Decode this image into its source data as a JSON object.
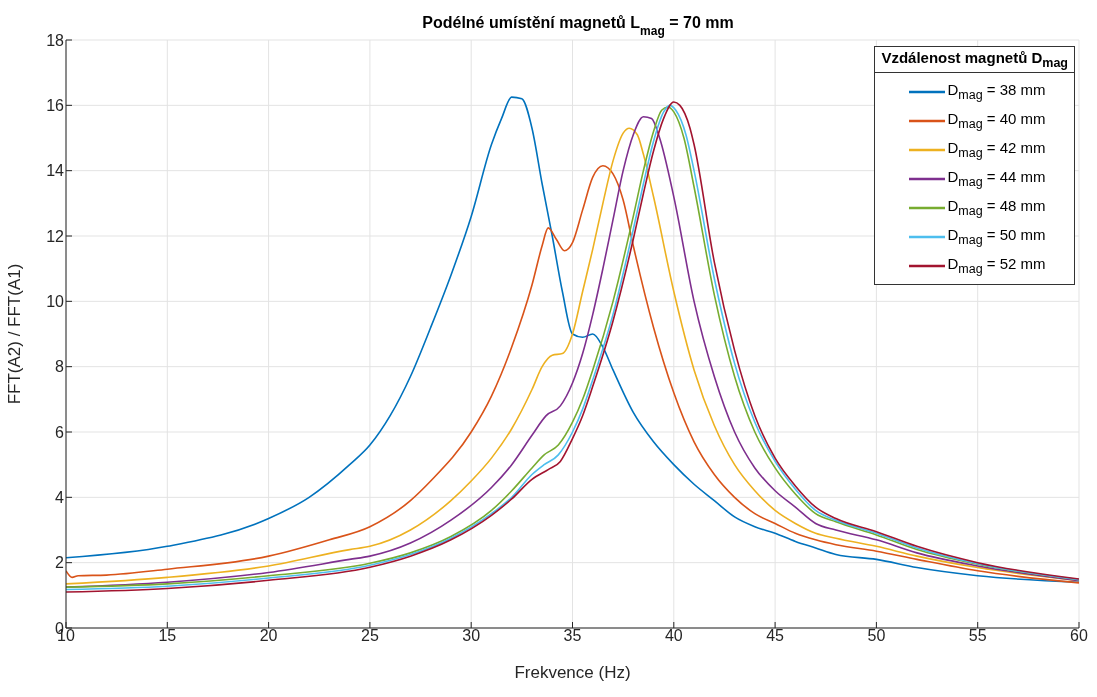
{
  "chart_data": {
    "type": "line",
    "title": "Podélné umístění magnetů L$_{mag}$ = 70 mm",
    "xlabel": "Frekvence (Hz)",
    "ylabel": "FFT(A2) / FFT(A1)",
    "legend_title": "Vzdálenost magnetů D$_{mag}$",
    "legend": "top right",
    "grid": true,
    "marker": "none",
    "line_style": "solid",
    "xlim": [
      10,
      60
    ],
    "xticks": [
      10,
      15,
      20,
      25,
      30,
      35,
      40,
      45,
      50,
      55,
      60
    ],
    "ylim": [
      0,
      18
    ],
    "yticks": [
      0,
      2,
      4,
      6,
      8,
      10,
      12,
      14,
      16,
      18
    ],
    "series": [
      {
        "name": "D$_{mag}$ = 38 mm",
        "color": "#0072bd",
        "x": [
          10,
          15,
          20,
          22,
          24,
          25,
          26,
          27,
          28,
          29,
          30,
          31,
          31.5,
          32,
          32.5,
          33,
          33.5,
          34,
          34.5,
          35,
          35.5,
          36,
          36.5,
          37,
          38,
          39,
          40,
          41,
          42,
          43,
          44,
          45,
          46,
          47,
          48,
          50,
          52,
          55,
          60
        ],
        "values": [
          2.15,
          2.5,
          3.35,
          4.0,
          5.0,
          5.6,
          6.5,
          7.7,
          9.2,
          10.8,
          12.6,
          14.8,
          15.6,
          16.25,
          16.2,
          15.3,
          13.6,
          12.0,
          10.3,
          9.0,
          8.9,
          9.0,
          8.6,
          7.9,
          6.6,
          5.7,
          5.0,
          4.4,
          3.9,
          3.4,
          3.1,
          2.9,
          2.65,
          2.45,
          2.25,
          2.1,
          1.85,
          1.6,
          1.4
        ]
      },
      {
        "name": "D$_{mag}$ = 40 mm",
        "color": "#d95319",
        "x": [
          10,
          10.3,
          10.6,
          12,
          15,
          20,
          23,
          25,
          27,
          28,
          30,
          31,
          32,
          33,
          33.5,
          33.8,
          34.2,
          34.6,
          35,
          35.5,
          36,
          36.5,
          37,
          37.5,
          38,
          39,
          40,
          41,
          42,
          43,
          44,
          45,
          46,
          47,
          48,
          50,
          52,
          55,
          60
        ],
        "values": [
          1.75,
          1.55,
          1.6,
          1.62,
          1.8,
          2.2,
          2.7,
          3.1,
          3.9,
          4.5,
          6.0,
          7.1,
          8.6,
          10.5,
          11.7,
          12.25,
          11.9,
          11.55,
          11.8,
          12.8,
          13.8,
          14.15,
          13.9,
          13.1,
          11.7,
          9.2,
          7.2,
          5.7,
          4.7,
          4.0,
          3.5,
          3.2,
          2.9,
          2.7,
          2.55,
          2.35,
          2.1,
          1.75,
          1.38
        ]
      },
      {
        "name": "D$_{mag}$ = 42 mm",
        "color": "#edb120",
        "x": [
          10,
          15,
          20,
          24,
          25,
          27,
          29,
          30,
          31,
          32,
          33,
          33.5,
          34,
          34.5,
          35,
          35.5,
          36,
          36.5,
          37,
          37.5,
          37.8,
          38.2,
          38.5,
          39,
          40,
          41,
          42,
          43,
          44,
          45,
          46,
          47,
          48,
          50,
          52,
          55,
          60
        ],
        "values": [
          1.35,
          1.55,
          1.9,
          2.4,
          2.5,
          3.0,
          3.9,
          4.5,
          5.2,
          6.1,
          7.3,
          8.0,
          8.35,
          8.4,
          9.0,
          10.3,
          11.6,
          13.0,
          14.3,
          15.15,
          15.3,
          15.1,
          14.5,
          13.2,
          10.3,
          7.9,
          6.2,
          5.0,
          4.2,
          3.6,
          3.2,
          2.9,
          2.75,
          2.5,
          2.2,
          1.85,
          1.45
        ]
      },
      {
        "name": "D$_{mag}$ = 44 mm",
        "color": "#7e2f8e",
        "x": [
          10,
          15,
          20,
          24,
          25,
          27,
          29,
          31,
          32,
          33,
          33.7,
          34.4,
          35,
          35.5,
          36,
          36.5,
          37,
          37.5,
          38,
          38.5,
          38.9,
          39.3,
          40,
          41,
          42,
          43,
          44,
          45,
          46,
          47,
          48,
          50,
          52,
          55,
          60
        ],
        "values": [
          1.25,
          1.4,
          1.7,
          2.1,
          2.2,
          2.6,
          3.3,
          4.3,
          5.0,
          5.9,
          6.5,
          6.8,
          7.5,
          8.4,
          9.6,
          11.0,
          12.5,
          14.0,
          15.1,
          15.65,
          15.6,
          15.0,
          13.2,
          10.0,
          7.7,
          6.0,
          4.9,
          4.2,
          3.7,
          3.2,
          3.0,
          2.7,
          2.3,
          1.9,
          1.45
        ]
      },
      {
        "name": "D$_{mag}$ = 48 mm",
        "color": "#77ac30",
        "x": [
          10,
          15,
          20,
          25,
          27,
          29,
          31,
          32,
          33,
          33.6,
          34.3,
          35,
          35.5,
          36,
          37,
          38,
          38.5,
          39,
          39.4,
          39.7,
          40,
          40.5,
          41,
          42,
          43,
          44,
          45,
          46,
          47,
          48,
          50,
          52,
          55,
          60
        ],
        "values": [
          1.25,
          1.35,
          1.6,
          1.98,
          2.3,
          2.8,
          3.6,
          4.2,
          4.9,
          5.3,
          5.6,
          6.3,
          7.0,
          7.9,
          10.0,
          12.6,
          14.0,
          15.2,
          15.85,
          15.95,
          15.8,
          15.0,
          13.5,
          10.2,
          7.7,
          6.0,
          4.9,
          4.1,
          3.5,
          3.25,
          2.85,
          2.4,
          1.95,
          1.48
        ]
      },
      {
        "name": "D$_{mag}$ = 50 mm",
        "color": "#4dbeee",
        "x": [
          10,
          15,
          20,
          25,
          27,
          29,
          31,
          32,
          33,
          33.6,
          34.3,
          35,
          35.5,
          36,
          37,
          38,
          38.5,
          39,
          39.5,
          39.8,
          40.1,
          40.6,
          41,
          42,
          43,
          44,
          45,
          46,
          47,
          48,
          50,
          52,
          55,
          60
        ],
        "values": [
          1.18,
          1.28,
          1.53,
          1.92,
          2.25,
          2.75,
          3.5,
          4.0,
          4.7,
          5.0,
          5.3,
          6.0,
          6.7,
          7.6,
          9.6,
          12.2,
          13.6,
          14.9,
          15.8,
          16.0,
          15.85,
          15.1,
          14.0,
          10.7,
          8.1,
          6.3,
          5.1,
          4.25,
          3.6,
          3.3,
          2.9,
          2.45,
          1.97,
          1.48
        ]
      },
      {
        "name": "D$_{mag}$ = 52 mm",
        "color": "#a2142f",
        "x": [
          10,
          15,
          20,
          25,
          27,
          29,
          31,
          32,
          33,
          33.8,
          34.4,
          35,
          35.5,
          36,
          37,
          38,
          38.5,
          39,
          39.5,
          40,
          40.3,
          40.8,
          41,
          42,
          43,
          44,
          45,
          46,
          47,
          48,
          50,
          52,
          55,
          60
        ],
        "values": [
          1.1,
          1.21,
          1.46,
          1.86,
          2.2,
          2.7,
          3.45,
          3.95,
          4.55,
          4.85,
          5.1,
          5.8,
          6.5,
          7.4,
          9.4,
          11.9,
          13.3,
          14.6,
          15.6,
          16.1,
          16.0,
          15.3,
          14.8,
          11.2,
          8.5,
          6.5,
          5.2,
          4.35,
          3.7,
          3.35,
          2.95,
          2.5,
          2.0,
          1.5
        ]
      }
    ]
  }
}
